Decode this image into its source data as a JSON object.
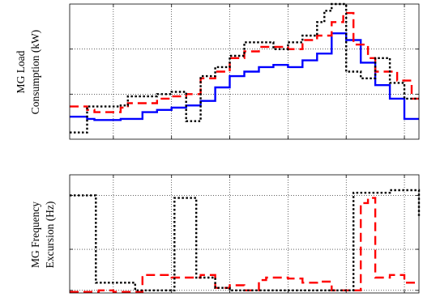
{
  "chart_data": [
    {
      "type": "line",
      "step": true,
      "ylabel": "MG Load Consumption (kW)",
      "ylabel_lines": [
        "MG Load",
        "Consumption (kW)"
      ],
      "xlabel": "",
      "tick_labels": "none",
      "grid": true,
      "xlim": [
        0,
        24
      ],
      "ylim": [
        0,
        6
      ],
      "series": [
        {
          "style": "solid",
          "color": "#0000ff",
          "x": [
            0,
            1.2,
            1.7,
            3.5,
            5,
            6,
            7,
            8,
            9,
            10,
            11,
            12,
            13,
            14,
            15,
            16,
            17,
            18,
            19,
            20,
            21,
            22,
            23,
            24
          ],
          "y": [
            1.0,
            0.9,
            0.85,
            0.9,
            1.2,
            1.3,
            1.4,
            1.5,
            1.7,
            2.3,
            2.8,
            3.0,
            3.2,
            3.3,
            3.2,
            3.5,
            3.8,
            4.7,
            4.4,
            3.4,
            2.4,
            1.8,
            0.9,
            0.9
          ]
        },
        {
          "style": "dashed",
          "color": "#ff0000",
          "x": [
            0,
            1.2,
            1.7,
            3.5,
            4,
            6,
            7,
            8,
            9,
            10,
            11,
            12,
            13,
            14,
            15,
            16,
            17,
            18,
            18.8,
            19.5,
            20.5,
            21,
            22.5,
            23.5,
            24
          ],
          "y": [
            1.45,
            1.3,
            1.2,
            1.4,
            1.6,
            1.8,
            1.9,
            2.0,
            2.7,
            3.0,
            3.6,
            3.9,
            4.1,
            4.1,
            4.0,
            4.4,
            4.6,
            5.2,
            5.6,
            4.2,
            3.6,
            3.0,
            2.6,
            1.8,
            1.8
          ]
        },
        {
          "style": "dotted",
          "color": "#000000",
          "x": [
            0,
            1,
            1.2,
            1.7,
            3.5,
            4,
            6,
            7,
            8,
            9,
            10,
            11,
            12,
            13,
            14,
            15,
            16,
            17,
            17.5,
            18,
            19,
            20,
            21,
            22,
            23,
            24
          ],
          "y": [
            0.3,
            0.3,
            1.45,
            1.45,
            1.5,
            1.9,
            2.0,
            2.1,
            0.8,
            2.8,
            3.2,
            3.7,
            4.3,
            4.3,
            4.0,
            4.3,
            4.6,
            5.2,
            5.7,
            6.0,
            3.0,
            2.7,
            3.6,
            2.5,
            1.8,
            1.8
          ]
        }
      ]
    },
    {
      "type": "line",
      "step": true,
      "ylabel": "MG Frequency Excursion (Hz)",
      "ylabel_lines": [
        "MG Frequency",
        "Excursion (Hz)"
      ],
      "xlabel": "",
      "tick_labels": "none",
      "grid": true,
      "xlim": [
        0,
        24
      ],
      "ylim": [
        0,
        2.3
      ],
      "series": [
        {
          "style": "dashed",
          "color": "#ff0000",
          "x": [
            0,
            2,
            3,
            5,
            7,
            9,
            10,
            11,
            12,
            13,
            13.5,
            15,
            16,
            17,
            18,
            19.5,
            20,
            20.5,
            21,
            22,
            23,
            24
          ],
          "y": [
            0.02,
            0.05,
            0.02,
            0.35,
            0.3,
            0.35,
            0.1,
            0.15,
            0.05,
            0.25,
            0.3,
            0.28,
            0.2,
            0.22,
            0.05,
            0.05,
            1.75,
            1.85,
            0.3,
            0.35,
            0.2,
            0.2
          ]
        },
        {
          "style": "dotted",
          "color": "#000000",
          "x": [
            0,
            1.3,
            1.8,
            3.0,
            4.5,
            6.5,
            7.2,
            8.2,
            8.7,
            10,
            11,
            12,
            13,
            14,
            15,
            16,
            17,
            18,
            19.5,
            21,
            22,
            23,
            24
          ],
          "y": [
            1.9,
            1.9,
            0.2,
            0.2,
            0.05,
            0.05,
            1.85,
            1.85,
            0.3,
            0.1,
            0.05,
            0.05,
            0.05,
            0.05,
            0.05,
            0.05,
            0.05,
            0.05,
            1.95,
            1.95,
            2.0,
            2.0,
            1.5
          ]
        }
      ]
    }
  ]
}
